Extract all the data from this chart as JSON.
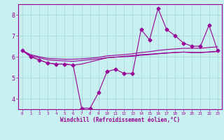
{
  "xlabel": "Windchill (Refroidissement éolien,°C)",
  "bg_color": "#c8f0f0",
  "line_color": "#990099",
  "grid_color": "#aadddd",
  "spine_color": "#800080",
  "x_hours": [
    0,
    1,
    2,
    3,
    4,
    5,
    6,
    7,
    8,
    9,
    10,
    11,
    12,
    13,
    14,
    15,
    16,
    17,
    18,
    19,
    20,
    21,
    22,
    23
  ],
  "y_windchill": [
    6.3,
    6.0,
    5.85,
    5.7,
    5.65,
    5.65,
    5.6,
    3.55,
    3.55,
    4.3,
    5.3,
    5.4,
    5.2,
    5.2,
    7.3,
    6.8,
    8.3,
    7.3,
    7.0,
    6.65,
    6.5,
    6.5,
    7.5,
    6.3
  ],
  "y_temp": [
    6.3,
    6.0,
    5.85,
    5.7,
    5.65,
    5.65,
    5.6,
    5.65,
    5.75,
    5.85,
    5.95,
    5.98,
    6.02,
    6.05,
    6.1,
    6.12,
    6.15,
    6.18,
    6.2,
    6.22,
    6.2,
    6.2,
    6.22,
    6.25
  ],
  "y_trendline_low": [
    6.3,
    6.05,
    5.95,
    5.85,
    5.82,
    5.8,
    5.78,
    5.82,
    5.86,
    5.9,
    5.95,
    5.98,
    6.0,
    6.02,
    6.07,
    6.1,
    6.14,
    6.17,
    6.2,
    6.22,
    6.2,
    6.2,
    6.23,
    6.25
  ],
  "y_trendline_high": [
    6.3,
    6.1,
    6.0,
    5.92,
    5.9,
    5.88,
    5.88,
    5.9,
    5.93,
    5.97,
    6.04,
    6.07,
    6.1,
    6.14,
    6.2,
    6.24,
    6.3,
    6.34,
    6.37,
    6.4,
    6.4,
    6.4,
    6.44,
    6.47
  ],
  "ylim": [
    3.5,
    8.5
  ],
  "yticks": [
    4,
    5,
    6,
    7,
    8
  ],
  "xlim_min": -0.5,
  "xlim_max": 23.5
}
